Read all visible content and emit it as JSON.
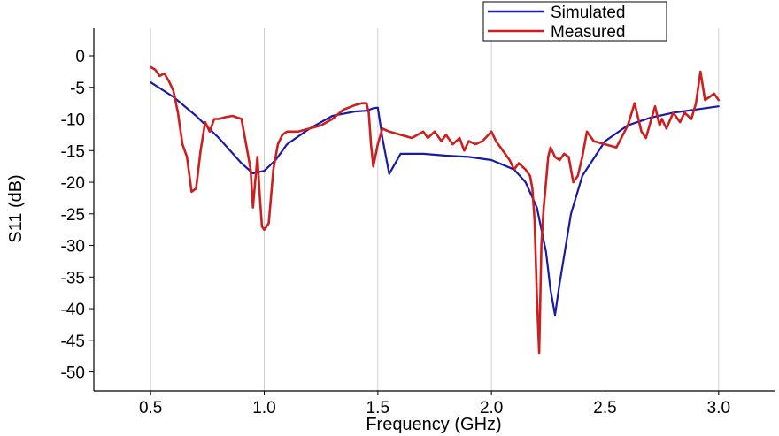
{
  "chart_data": {
    "type": "line",
    "title": "",
    "xlabel": "Frequency (GHz)",
    "ylabel": "S11 (dB)",
    "xlim": [
      0.25,
      3.25
    ],
    "ylim": [
      -53,
      3.5
    ],
    "xticks": [
      "0.5",
      "1.0",
      "1.5",
      "2.0",
      "2.5",
      "3.0"
    ],
    "yticks": [
      "0",
      "-5",
      "-10",
      "-15",
      "-20",
      "-25",
      "-30",
      "-35",
      "-40",
      "-45",
      "-50"
    ],
    "grid": "vertical",
    "legend_position": "top-right",
    "series": [
      {
        "name": "Simulated",
        "color": "#1a1aa6",
        "x": [
          0.5,
          0.6,
          0.7,
          0.8,
          0.9,
          0.95,
          1.0,
          1.05,
          1.1,
          1.2,
          1.3,
          1.4,
          1.45,
          1.48,
          1.5,
          1.52,
          1.55,
          1.6,
          1.7,
          1.8,
          1.9,
          2.0,
          2.1,
          2.15,
          2.2,
          2.24,
          2.26,
          2.28,
          2.3,
          2.35,
          2.4,
          2.5,
          2.6,
          2.7,
          2.8,
          2.9,
          3.0
        ],
        "y": [
          -4.2,
          -6.5,
          -9.5,
          -13.0,
          -17.0,
          -18.6,
          -18.2,
          -16.5,
          -14.0,
          -11.5,
          -9.5,
          -8.8,
          -8.7,
          -8.3,
          -8.2,
          -13.0,
          -18.7,
          -15.5,
          -15.5,
          -15.8,
          -16.0,
          -16.5,
          -18.0,
          -20.0,
          -24.0,
          -31.0,
          -37.0,
          -41.0,
          -36.0,
          -25.0,
          -19.0,
          -13.5,
          -11.0,
          -9.8,
          -9.0,
          -8.5,
          -8.0
        ]
      },
      {
        "name": "Measured",
        "color": "#cc1f1f",
        "x": [
          0.5,
          0.52,
          0.54,
          0.56,
          0.58,
          0.6,
          0.62,
          0.64,
          0.66,
          0.68,
          0.7,
          0.72,
          0.74,
          0.76,
          0.78,
          0.8,
          0.83,
          0.86,
          0.9,
          0.92,
          0.94,
          0.95,
          0.96,
          0.97,
          0.98,
          0.99,
          1.0,
          1.02,
          1.04,
          1.06,
          1.08,
          1.1,
          1.15,
          1.2,
          1.25,
          1.3,
          1.35,
          1.4,
          1.43,
          1.45,
          1.46,
          1.47,
          1.48,
          1.5,
          1.52,
          1.55,
          1.6,
          1.65,
          1.7,
          1.72,
          1.75,
          1.78,
          1.8,
          1.83,
          1.86,
          1.88,
          1.9,
          1.93,
          1.96,
          2.0,
          2.02,
          2.05,
          2.08,
          2.1,
          2.12,
          2.15,
          2.17,
          2.18,
          2.19,
          2.2,
          2.21,
          2.22,
          2.23,
          2.24,
          2.25,
          2.26,
          2.28,
          2.3,
          2.32,
          2.34,
          2.36,
          2.38,
          2.4,
          2.42,
          2.45,
          2.48,
          2.5,
          2.55,
          2.6,
          2.63,
          2.66,
          2.68,
          2.7,
          2.72,
          2.74,
          2.75,
          2.77,
          2.8,
          2.83,
          2.85,
          2.88,
          2.9,
          2.92,
          2.94,
          2.96,
          2.98,
          3.0
        ],
        "y": [
          -1.8,
          -2.2,
          -3.2,
          -2.8,
          -4.0,
          -5.5,
          -9.0,
          -14.0,
          -16.0,
          -21.5,
          -21.0,
          -15.0,
          -10.5,
          -12.0,
          -10.0,
          -10.0,
          -9.7,
          -9.5,
          -10.0,
          -14.0,
          -18.0,
          -24.0,
          -20.0,
          -16.0,
          -22.0,
          -27.0,
          -27.5,
          -26.5,
          -18.0,
          -14.0,
          -12.5,
          -12.0,
          -12.0,
          -11.5,
          -11.0,
          -10.0,
          -8.5,
          -7.8,
          -7.5,
          -7.5,
          -9.0,
          -14.0,
          -17.5,
          -14.0,
          -11.5,
          -12.0,
          -12.5,
          -13.0,
          -12.0,
          -13.0,
          -12.0,
          -13.5,
          -12.5,
          -14.0,
          -13.0,
          -15.0,
          -13.5,
          -14.0,
          -13.5,
          -12.0,
          -13.5,
          -15.0,
          -16.5,
          -18.0,
          -17.0,
          -18.0,
          -19.0,
          -21.0,
          -26.0,
          -38.0,
          -47.0,
          -30.0,
          -24.0,
          -20.0,
          -16.0,
          -14.5,
          -16.0,
          -16.5,
          -15.5,
          -16.0,
          -20.0,
          -19.0,
          -16.0,
          -12.0,
          -13.5,
          -13.8,
          -14.0,
          -14.5,
          -11.0,
          -7.5,
          -12.0,
          -13.0,
          -10.5,
          -8.0,
          -11.0,
          -10.0,
          -11.5,
          -9.0,
          -10.5,
          -9.0,
          -10.0,
          -7.5,
          -2.5,
          -7.0,
          -6.5,
          -6.0,
          -7.0
        ]
      }
    ]
  }
}
